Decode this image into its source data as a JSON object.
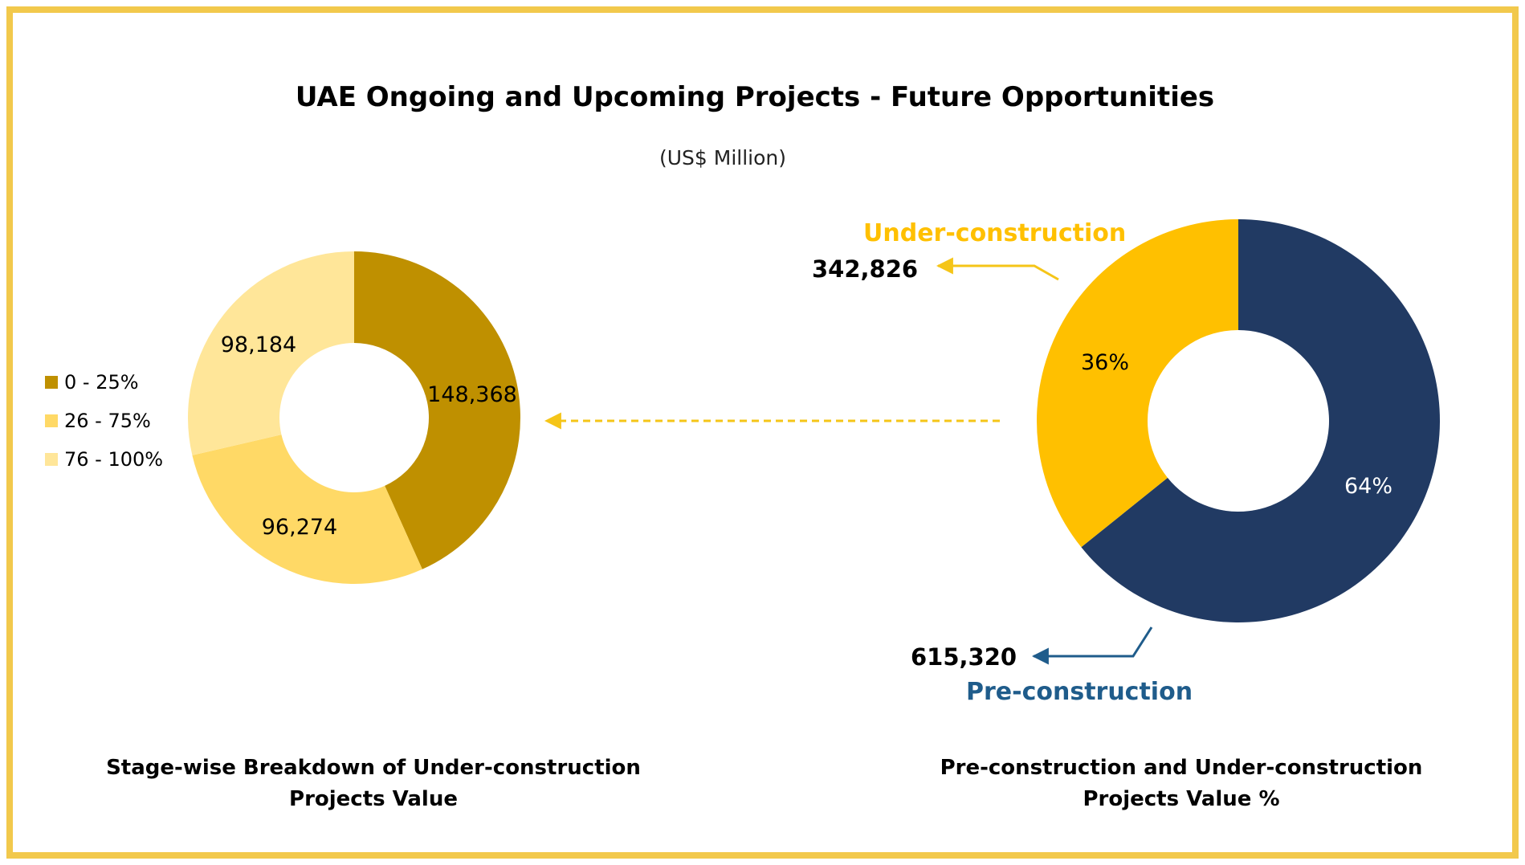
{
  "title": "UAE Ongoing and Upcoming Projects - Future Opportunities",
  "subtitle": "(US$ Million)",
  "colors": {
    "border": "#F2C94C",
    "arrow_yellow": "#F5C518",
    "navy": "#213A63",
    "under_construction_label": "#FFC000",
    "pre_construction_label": "#1F5C8B",
    "stage_0_25": "#BF9000",
    "stage_26_75": "#FFD966",
    "stage_76_100": "#FFE699"
  },
  "chart_data": [
    {
      "type": "pie",
      "variant": "donut",
      "title": "Stage-wise Breakdown of Under-construction Projects Value",
      "title_lines": [
        "Stage-wise Breakdown of Under-construction",
        "Projects Value"
      ],
      "legend_position": "left",
      "legend": [
        "0 - 25%",
        "26 - 75%",
        "76 - 100%"
      ],
      "slices": [
        {
          "name": "0 - 25%",
          "value": 148368,
          "label": "148,368",
          "color": "#BF9000"
        },
        {
          "name": "26 - 75%",
          "value": 96274,
          "label": "96,274",
          "color": "#FFD966"
        },
        {
          "name": "76 - 100%",
          "value": 98184,
          "label": "98,184",
          "color": "#FFE699"
        }
      ]
    },
    {
      "type": "pie",
      "variant": "donut",
      "title": "Pre-construction and Under-construction Projects Value %",
      "title_lines": [
        "Pre-construction and Under-construction",
        "Projects Value %"
      ],
      "slices": [
        {
          "name": "Pre-construction",
          "value": 615320,
          "value_label": "615,320",
          "percent_label": "64%",
          "color": "#213A63"
        },
        {
          "name": "Under-construction",
          "value": 342826,
          "value_label": "342,826",
          "percent_label": "36%",
          "color": "#FFC000"
        }
      ],
      "callouts": {
        "under_construction": {
          "name": "Under-construction",
          "value": "342,826"
        },
        "pre_construction": {
          "name": "Pre-construction",
          "value": "615,320"
        }
      }
    }
  ]
}
